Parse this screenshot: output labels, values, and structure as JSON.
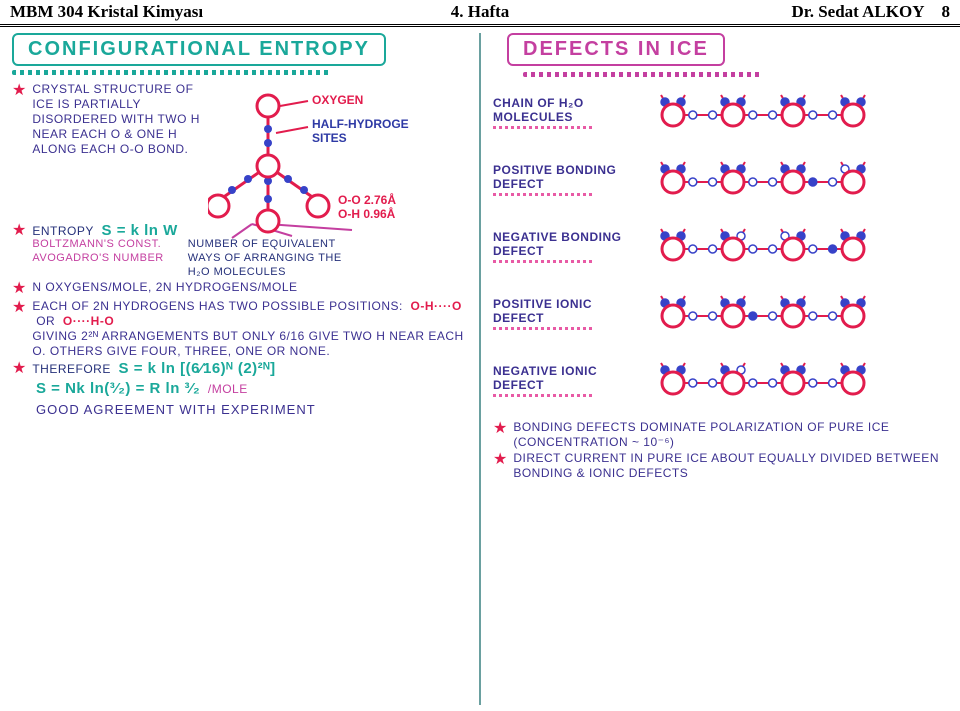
{
  "header": {
    "left": "MBM 304 Kristal Kimyası",
    "mid": "4. Hafta",
    "right": "Dr. Sedat ALKOY",
    "page": "8"
  },
  "left": {
    "title": "CONFIGURATIONAL ENTROPY",
    "annot": {
      "oxygen": "OXYGEN",
      "half_h": "HALF-HYDROGE",
      "sites": "SITES",
      "oo": "O-O 2.76Å",
      "oh": "O-H 0.96Å"
    },
    "b1": "CRYSTAL STRUCTURE OF ICE IS PARTIALLY DISORDERED WITH TWO H NEAR EACH O & ONE H ALONG EACH O-O BOND.",
    "entropy_label": "ENTROPY",
    "entropy_eq": "S = k ln W",
    "boltz": "BOLTZMANN'S CONST.",
    "avog": "AVOGADRO'S NUMBER",
    "ways": "NUMBER OF EQUIVALENT WAYS OF ARRANGING THE H₂O MOLECULES",
    "b3": "N OXYGENS/MOLE, 2N HYDROGENS/MOLE",
    "b4a": "EACH OF 2N HYDROGENS HAS TWO POSSIBLE POSITIONS:",
    "b4_pos1": "O-H····O",
    "b4_or": "OR",
    "b4_pos2": "O····H-O",
    "b4b": "GIVING 2²ᴺ ARRANGEMENTS BUT ONLY 6/16 GIVE TWO H NEAR EACH O. OTHERS GIVE FOUR, THREE, ONE OR NONE.",
    "b5_a": "THEREFORE",
    "b5_eq": "S = k ln [(6⁄16)ᴺ (2)²ᴺ]",
    "b6_eq": "S = Nk ln(³⁄₂) = R ln ³⁄₂",
    "b6_unit": "/MOLE",
    "b7": "GOOD AGREEMENT WITH EXPERIMENT"
  },
  "right": {
    "title": "DEFECTS IN ICE",
    "rows": [
      {
        "label_a": "CHAIN OF H₂O",
        "label_b": "MOLECULES"
      },
      {
        "label_a": "POSITIVE BONDING",
        "label_b": "DEFECT"
      },
      {
        "label_a": "NEGATIVE BONDING",
        "label_b": "DEFECT"
      },
      {
        "label_a": "POSITIVE IONIC",
        "label_b": "DEFECT"
      },
      {
        "label_a": "NEGATIVE IONIC",
        "label_b": "DEFECT"
      }
    ],
    "foot1": "BONDING DEFECTS DOMINATE POLARIZATION OF PURE ICE (CONCENTRATION ~ 10⁻⁶)",
    "foot2": "DIRECT CURRENT IN PURE ICE ABOUT EQUALLY DIVIDED BETWEEN BONDING & IONIC DEFECTS"
  },
  "style": {
    "oxygen_color": "#e21c4d",
    "oxygen_stroke": 3,
    "hydrogen_color": "#3742c8",
    "bond_color": "#e21c4d",
    "hsite_stroke_color": "#3742c8",
    "big_r": 11,
    "small_r": 4,
    "chain_bg": "#ffffff",
    "chain_n": 4,
    "chain_spacing": 60
  },
  "chains": {
    "normal": {
      "h_pattern": [
        [
          true,
          true,
          false,
          false
        ],
        [
          true,
          true,
          false,
          false
        ],
        [
          true,
          true,
          false,
          false
        ],
        [
          true,
          true,
          false,
          false
        ]
      ],
      "missing_oxygen": []
    },
    "pos_bond": {
      "h_pattern": [
        [
          true,
          true,
          false,
          false
        ],
        [
          true,
          true,
          false,
          false
        ],
        [
          true,
          true,
          true,
          false
        ],
        [
          false,
          true,
          false,
          false
        ]
      ],
      "missing_oxygen": []
    },
    "neg_bond": {
      "h_pattern": [
        [
          true,
          true,
          false,
          false
        ],
        [
          true,
          false,
          false,
          false
        ],
        [
          false,
          true,
          false,
          true
        ],
        [
          true,
          true,
          false,
          false
        ]
      ],
      "missing_oxygen": []
    },
    "pos_ion": {
      "h_pattern": [
        [
          true,
          true,
          false,
          false
        ],
        [
          true,
          true,
          true,
          false
        ],
        [
          true,
          true,
          false,
          false
        ],
        [
          true,
          true,
          false,
          false
        ]
      ],
      "missing_oxygen": []
    },
    "neg_ion": {
      "h_pattern": [
        [
          true,
          true,
          false,
          false
        ],
        [
          true,
          false,
          false,
          false
        ],
        [
          true,
          true,
          false,
          false
        ],
        [
          true,
          true,
          false,
          false
        ]
      ],
      "missing_oxygen": []
    }
  }
}
